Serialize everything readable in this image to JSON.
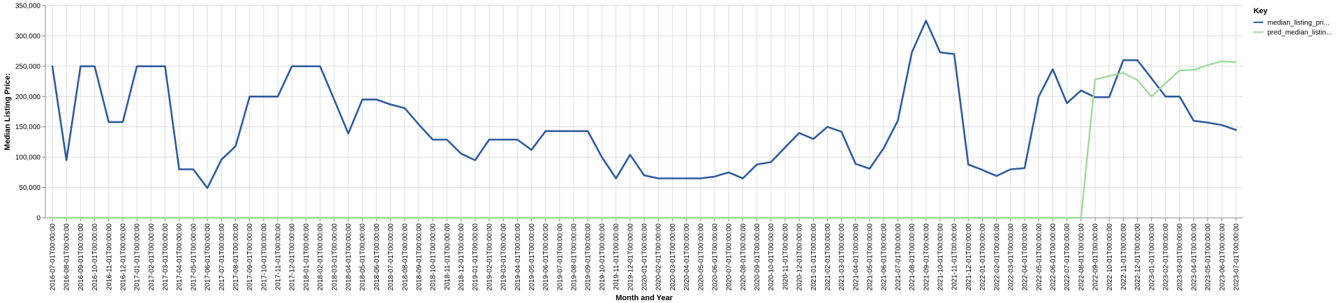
{
  "chart_data": {
    "type": "line",
    "xlabel": "Month and Year",
    "ylabel": "Median Listing Price:",
    "ylim": [
      0,
      350000
    ],
    "yticks": [
      "0",
      "50,000",
      "100,000",
      "150,000",
      "200,000",
      "250,000",
      "300,000",
      "350,000"
    ],
    "ytick_values": [
      0,
      50000,
      100000,
      150000,
      200000,
      250000,
      300000,
      350000
    ],
    "grid": true,
    "legend": {
      "title": "Key",
      "position": "top-right",
      "entries": [
        "median_listing_pri...",
        "pred_median_listin..."
      ]
    },
    "x": [
      "2016-07-01T00:00:00",
      "2016-08-01T00:00:00",
      "2016-09-01T00:00:00",
      "2016-10-01T00:00:00",
      "2016-11-01T00:00:00",
      "2016-12-01T00:00:00",
      "2017-01-01T00:00:00",
      "2017-02-01T00:00:00",
      "2017-03-01T00:00:00",
      "2017-04-01T00:00:00",
      "2017-05-01T00:00:00",
      "2017-06-01T00:00:00",
      "2017-07-01T00:00:00",
      "2017-08-01T00:00:00",
      "2017-09-01T00:00:00",
      "2017-10-01T00:00:00",
      "2017-11-01T00:00:00",
      "2017-12-01T00:00:00",
      "2018-01-01T00:00:00",
      "2018-02-01T00:00:00",
      "2018-03-01T00:00:00",
      "2018-04-01T00:00:00",
      "2018-05-01T00:00:00",
      "2018-06-01T00:00:00",
      "2018-07-01T00:00:00",
      "2018-08-01T00:00:00",
      "2018-09-01T00:00:00",
      "2018-10-01T00:00:00",
      "2018-11-01T00:00:00",
      "2018-12-01T00:00:00",
      "2019-01-01T00:00:00",
      "2019-02-01T00:00:00",
      "2019-03-01T00:00:00",
      "2019-04-01T00:00:00",
      "2019-05-01T00:00:00",
      "2019-06-01T00:00:00",
      "2019-07-01T00:00:00",
      "2019-08-01T00:00:00",
      "2019-09-01T00:00:00",
      "2019-10-01T00:00:00",
      "2019-11-01T00:00:00",
      "2019-12-01T00:00:00",
      "2020-01-01T00:00:00",
      "2020-02-01T00:00:00",
      "2020-03-01T00:00:00",
      "2020-04-01T00:00:00",
      "2020-05-01T00:00:00",
      "2020-06-01T00:00:00",
      "2020-07-01T00:00:00",
      "2020-08-01T00:00:00",
      "2020-09-01T00:00:00",
      "2020-10-01T00:00:00",
      "2020-11-01T00:00:00",
      "2020-12-01T00:00:00",
      "2021-01-01T00:00:00",
      "2021-02-01T00:00:00",
      "2021-03-01T00:00:00",
      "2021-04-01T00:00:00",
      "2021-05-01T00:00:00",
      "2021-06-01T00:00:00",
      "2021-07-01T00:00:00",
      "2021-08-01T00:00:00",
      "2021-09-01T00:00:00",
      "2021-10-01T00:00:00",
      "2021-11-01T00:00:00",
      "2021-12-01T00:00:00",
      "2022-01-01T00:00:00",
      "2022-02-01T00:00:00",
      "2022-03-01T00:00:00",
      "2022-04-01T00:00:00",
      "2022-05-01T00:00:00",
      "2022-06-01T00:00:00",
      "2022-07-01T00:00:00",
      "2022-08-01T00:00:00",
      "2022-09-01T00:00:00",
      "2022-10-01T00:00:00",
      "2022-11-01T00:00:00",
      "2022-12-01T00:00:00",
      "2023-01-01T00:00:00",
      "2023-02-01T00:00:00",
      "2023-03-01T00:00:00",
      "2023-04-01T00:00:00",
      "2023-05-01T00:00:00",
      "2023-06-01T00:00:00",
      "2023-07-01T00:00:00"
    ],
    "series": [
      {
        "name": "median_listing_pri...",
        "color": "#2c5aa0",
        "values": [
          250000,
          95000,
          250000,
          250000,
          158000,
          158000,
          250000,
          250000,
          250000,
          80000,
          80000,
          49000,
          96000,
          118000,
          200000,
          200000,
          200000,
          250000,
          250000,
          250000,
          195000,
          139000,
          195000,
          195000,
          187000,
          181000,
          154000,
          129000,
          129000,
          106000,
          95000,
          129000,
          129000,
          129000,
          112000,
          143000,
          143000,
          143000,
          143000,
          100000,
          65000,
          104000,
          70000,
          65000,
          65000,
          65000,
          65000,
          68000,
          75000,
          65000,
          88000,
          92000,
          116000,
          140000,
          130000,
          150000,
          142000,
          89000,
          81000,
          115000,
          160000,
          273000,
          325000,
          273000,
          270000,
          88000,
          79000,
          69000,
          80000,
          82000,
          200000,
          245000,
          189000,
          210000,
          199000,
          199000,
          260000,
          260000,
          230000,
          200000,
          200000,
          160000,
          157000,
          153000,
          145000
        ]
      },
      {
        "name": "pred_median_listin...",
        "color": "#a1d99b",
        "values": [
          0,
          0,
          0,
          0,
          0,
          0,
          0,
          0,
          0,
          0,
          0,
          0,
          0,
          0,
          0,
          0,
          0,
          0,
          0,
          0,
          0,
          0,
          0,
          0,
          0,
          0,
          0,
          0,
          0,
          0,
          0,
          0,
          0,
          0,
          0,
          0,
          0,
          0,
          0,
          0,
          0,
          0,
          0,
          0,
          0,
          0,
          0,
          0,
          0,
          0,
          0,
          0,
          0,
          0,
          0,
          0,
          0,
          0,
          0,
          0,
          0,
          0,
          0,
          0,
          0,
          0,
          0,
          0,
          0,
          0,
          0,
          0,
          0,
          0,
          228000,
          234000,
          239000,
          227000,
          200000,
          222000,
          243000,
          244000,
          252000,
          258000,
          257000
        ]
      }
    ]
  }
}
